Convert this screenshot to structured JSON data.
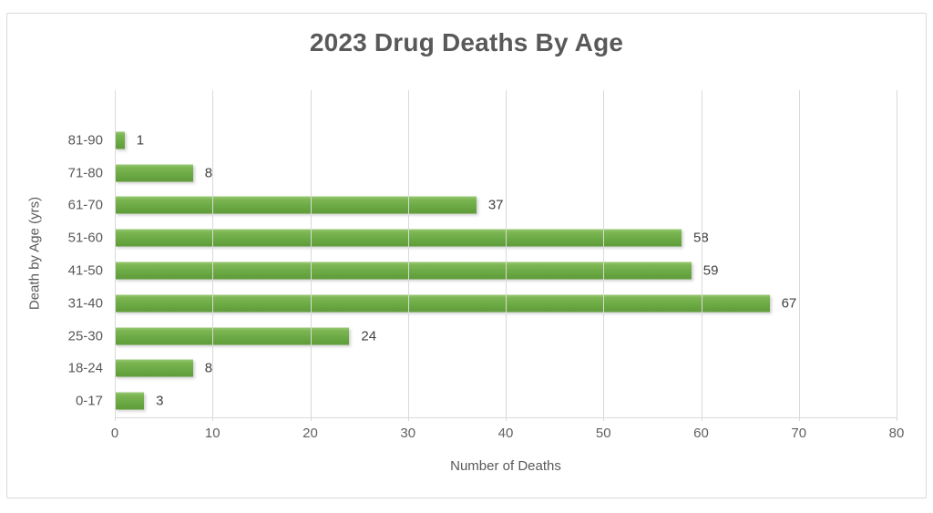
{
  "chart_data": {
    "type": "bar",
    "orientation": "horizontal",
    "title": "2023 Drug Deaths By Age",
    "xlabel": "Number of Deaths",
    "ylabel": "Death by Age (yrs)",
    "categories_top_to_bottom": [
      "81-90",
      "71-80",
      "61-70",
      "51-60",
      "41-50",
      "31-40",
      "25-30",
      "18-24",
      "0-17"
    ],
    "values": [
      1,
      8,
      37,
      58,
      59,
      67,
      24,
      8,
      3
    ],
    "data_labels_shown": true,
    "xlim": [
      0,
      80
    ],
    "xticks": [
      0,
      10,
      20,
      30,
      40,
      50,
      60,
      70,
      80
    ],
    "grid": "vertical-major",
    "legend": "none",
    "colors": {
      "bar_fill": "#70AD47",
      "bar_gradient_top": "#9ACA74",
      "bar_gradient_bottom": "#5F9C3A",
      "gridline": "#D9D9D9",
      "frame_border": "#D9D9D9",
      "title_text": "#595959",
      "axis_text": "#595959",
      "tick_text": "#616161",
      "data_label_text": "#404040",
      "background": "#FFFFFF"
    }
  }
}
